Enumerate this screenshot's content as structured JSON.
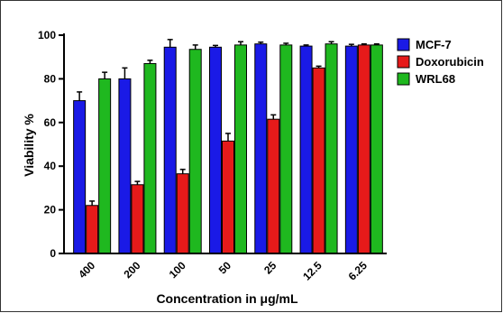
{
  "chart_data": {
    "type": "bar",
    "categories": [
      "400",
      "200",
      "100",
      "50",
      "25",
      "12.5",
      "6.25"
    ],
    "series": [
      {
        "name": "MCF-7",
        "color": "#1a1ae6",
        "values": [
          70,
          80,
          94.5,
          94.5,
          96,
          95,
          95
        ],
        "errors": [
          4,
          5,
          3.5,
          0.8,
          0.8,
          0.5,
          0.8
        ]
      },
      {
        "name": "Doxorubicin",
        "color": "#e61a1a",
        "values": [
          22,
          31.5,
          36.5,
          51.5,
          61.5,
          85,
          95.5
        ],
        "errors": [
          2,
          1.5,
          2,
          3.5,
          2,
          0.8,
          0.5
        ]
      },
      {
        "name": "WRL68",
        "color": "#1fb81f",
        "values": [
          80,
          87,
          93.5,
          95.5,
          95.5,
          96,
          95.5
        ],
        "errors": [
          3,
          1.5,
          2,
          1.5,
          0.8,
          1,
          0.5
        ]
      }
    ],
    "xlabel": "Concentration in μg/mL",
    "ylabel": "Viability %",
    "ylim": [
      0,
      100
    ],
    "yticks": [
      "0",
      "20",
      "40",
      "60",
      "80",
      "100"
    ],
    "legend_position": "top-right",
    "grid": false
  }
}
